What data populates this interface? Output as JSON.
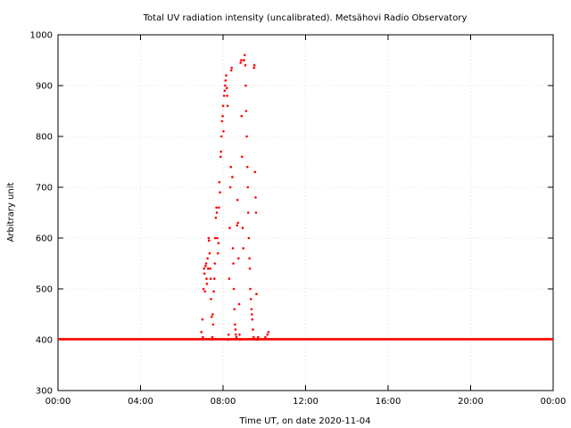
{
  "chart_data": {
    "type": "scatter",
    "title": "Total UV radiation intensity (uncalibrated). Metsähovi Radio Observatory",
    "xlabel": "Time UT, on date 2020-11-04",
    "ylabel": "Arbitrary unit",
    "xlim_hours": [
      0,
      24
    ],
    "ylim": [
      300,
      1000
    ],
    "x_ticks": [
      {
        "hour": 0,
        "label": "00:00"
      },
      {
        "hour": 4,
        "label": "04:00"
      },
      {
        "hour": 8,
        "label": "08:00"
      },
      {
        "hour": 12,
        "label": "12:00"
      },
      {
        "hour": 16,
        "label": "16:00"
      },
      {
        "hour": 20,
        "label": "20:00"
      },
      {
        "hour": 24,
        "label": "00:00"
      }
    ],
    "y_ticks": [
      300,
      400,
      500,
      600,
      700,
      800,
      900,
      1000
    ],
    "grid": true,
    "marker_color": "#ff0000",
    "baseline": {
      "value": 401,
      "x_start_hour": 0,
      "x_end_hour": 24
    },
    "points": [
      [
        6.95,
        415
      ],
      [
        7.0,
        440
      ],
      [
        7.02,
        405
      ],
      [
        7.05,
        500
      ],
      [
        7.08,
        540
      ],
      [
        7.1,
        530
      ],
      [
        7.12,
        495
      ],
      [
        7.15,
        545
      ],
      [
        7.18,
        550
      ],
      [
        7.2,
        520
      ],
      [
        7.22,
        510
      ],
      [
        7.25,
        560
      ],
      [
        7.28,
        540
      ],
      [
        7.3,
        600
      ],
      [
        7.32,
        595
      ],
      [
        7.35,
        570
      ],
      [
        7.38,
        540
      ],
      [
        7.4,
        520
      ],
      [
        7.42,
        480
      ],
      [
        7.45,
        445
      ],
      [
        7.48,
        405
      ],
      [
        7.5,
        450
      ],
      [
        7.52,
        430
      ],
      [
        7.55,
        495
      ],
      [
        7.58,
        520
      ],
      [
        7.6,
        550
      ],
      [
        7.62,
        600
      ],
      [
        7.65,
        640
      ],
      [
        7.68,
        660
      ],
      [
        7.7,
        650
      ],
      [
        7.72,
        600
      ],
      [
        7.75,
        570
      ],
      [
        7.78,
        590
      ],
      [
        7.8,
        660
      ],
      [
        7.82,
        710
      ],
      [
        7.85,
        690
      ],
      [
        7.88,
        760
      ],
      [
        7.9,
        770
      ],
      [
        7.92,
        800
      ],
      [
        7.95,
        830
      ],
      [
        7.98,
        840
      ],
      [
        8.0,
        860
      ],
      [
        8.02,
        810
      ],
      [
        8.05,
        880
      ],
      [
        8.08,
        890
      ],
      [
        8.1,
        900
      ],
      [
        8.12,
        910
      ],
      [
        8.15,
        920
      ],
      [
        8.18,
        895
      ],
      [
        8.2,
        880
      ],
      [
        8.22,
        860
      ],
      [
        8.25,
        400
      ],
      [
        8.27,
        410
      ],
      [
        8.3,
        520
      ],
      [
        8.32,
        620
      ],
      [
        8.35,
        700
      ],
      [
        8.38,
        740
      ],
      [
        8.4,
        930
      ],
      [
        8.42,
        935
      ],
      [
        8.45,
        720
      ],
      [
        8.48,
        580
      ],
      [
        8.5,
        550
      ],
      [
        8.52,
        500
      ],
      [
        8.55,
        460
      ],
      [
        8.58,
        430
      ],
      [
        8.6,
        420
      ],
      [
        8.62,
        410
      ],
      [
        8.65,
        405
      ],
      [
        8.68,
        625
      ],
      [
        8.7,
        675
      ],
      [
        8.72,
        630
      ],
      [
        8.75,
        560
      ],
      [
        8.78,
        470
      ],
      [
        8.8,
        410
      ],
      [
        8.82,
        400
      ],
      [
        8.85,
        945
      ],
      [
        8.88,
        950
      ],
      [
        8.9,
        840
      ],
      [
        8.92,
        760
      ],
      [
        8.95,
        620
      ],
      [
        8.98,
        580
      ],
      [
        9.0,
        950
      ],
      [
        9.02,
        950
      ],
      [
        9.05,
        960
      ],
      [
        9.08,
        940
      ],
      [
        9.1,
        900
      ],
      [
        9.12,
        850
      ],
      [
        9.15,
        800
      ],
      [
        9.18,
        740
      ],
      [
        9.2,
        700
      ],
      [
        9.22,
        650
      ],
      [
        9.25,
        600
      ],
      [
        9.28,
        560
      ],
      [
        9.3,
        540
      ],
      [
        9.32,
        500
      ],
      [
        9.35,
        480
      ],
      [
        9.38,
        460
      ],
      [
        9.4,
        450
      ],
      [
        9.42,
        440
      ],
      [
        9.45,
        420
      ],
      [
        9.48,
        405
      ],
      [
        9.5,
        935
      ],
      [
        9.52,
        940
      ],
      [
        9.55,
        730
      ],
      [
        9.58,
        680
      ],
      [
        9.6,
        650
      ],
      [
        9.62,
        490
      ],
      [
        9.65,
        400
      ],
      [
        9.7,
        405
      ],
      [
        10.05,
        405
      ],
      [
        10.15,
        410
      ],
      [
        10.2,
        415
      ]
    ]
  }
}
